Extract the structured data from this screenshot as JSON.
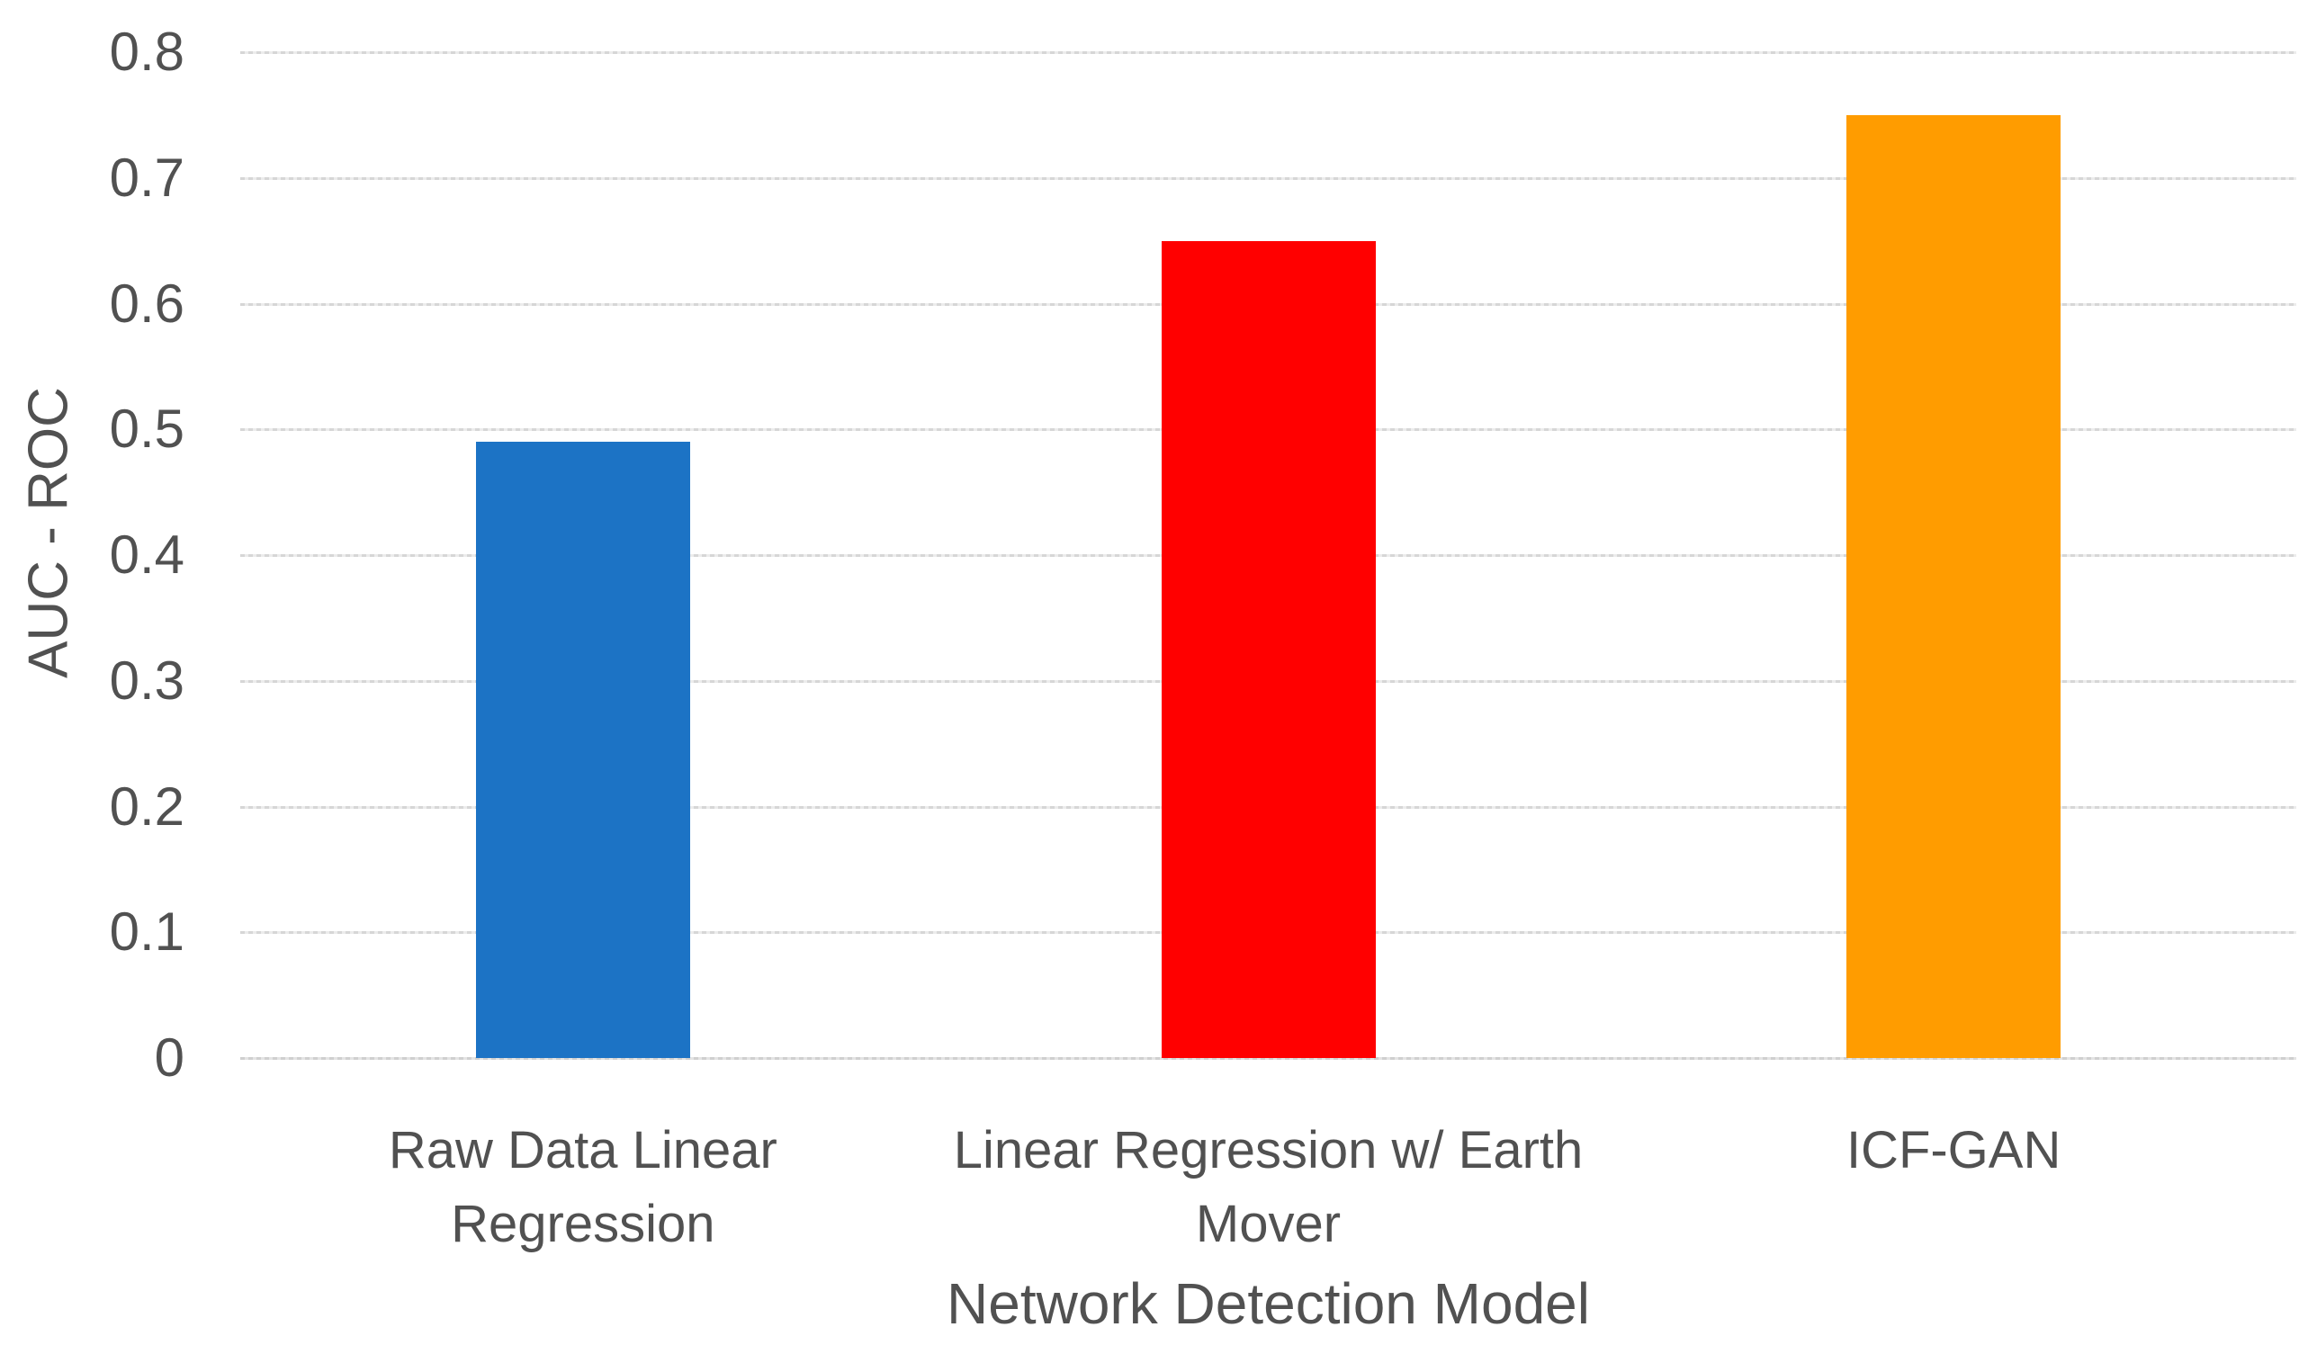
{
  "chart_data": {
    "type": "bar",
    "title": "",
    "xlabel": "Network Detection Model",
    "ylabel": "AUC - ROC",
    "categories": [
      "Raw Data Linear Regression",
      "Linear Regression w/ Earth Mover",
      "ICF-GAN"
    ],
    "values": [
      0.49,
      0.65,
      0.75
    ],
    "bar_colors": [
      "#1C73C5",
      "#FF0000",
      "#FF9C00"
    ],
    "ylim": [
      0,
      0.8
    ],
    "ytick_step": 0.1,
    "ytick_labels": [
      "0",
      "0.1",
      "0.2",
      "0.3",
      "0.4",
      "0.5",
      "0.6",
      "0.7",
      "0.8"
    ],
    "grid": "horizontal",
    "legend": "none",
    "background_color": "#FFFFFF",
    "text_color": "#515151",
    "gridline_color": "#D6D6D6",
    "axis_line_color": "#CFCFCF"
  }
}
